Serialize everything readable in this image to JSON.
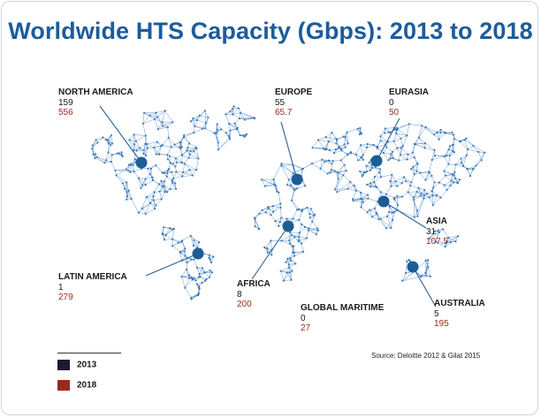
{
  "chart_data": {
    "type": "map",
    "title": "Worldwide HTS Capacity (Gbps): 2013 to 2018",
    "units": "Gbps",
    "series": [
      {
        "name": "2013",
        "color": "#1a1a2e"
      },
      {
        "name": "2018",
        "color": "#9a2a1e"
      }
    ],
    "regions": [
      {
        "name": "NORTH AMERICA",
        "v2013": "159",
        "v2018": "556"
      },
      {
        "name": "EUROPE",
        "v2013": "55",
        "v2018": "65.7"
      },
      {
        "name": "EURASIA",
        "v2013": "0",
        "v2018": "50"
      },
      {
        "name": "ASIA",
        "v2013": "31",
        "v2018": "107.5"
      },
      {
        "name": "LATIN AMERICA",
        "v2013": "1",
        "v2018": "279"
      },
      {
        "name": "AFRICA",
        "v2013": "8",
        "v2018": "200"
      },
      {
        "name": "GLOBAL MARITIME",
        "v2013": "0",
        "v2018": "27"
      },
      {
        "name": "AUSTRALIA",
        "v2013": "5",
        "v2018": "195"
      }
    ],
    "source": "Source: Deloitte 2012 & Gilat 2015"
  },
  "colors": {
    "title": "#1c5c9c",
    "network": "#3a78b8",
    "marker": "#1d5d95",
    "value_2013": "#1a1a1a",
    "value_2018": "#9a2a1e",
    "legend_2013": "#1a1a2e",
    "legend_2018": "#9a2a1e"
  }
}
